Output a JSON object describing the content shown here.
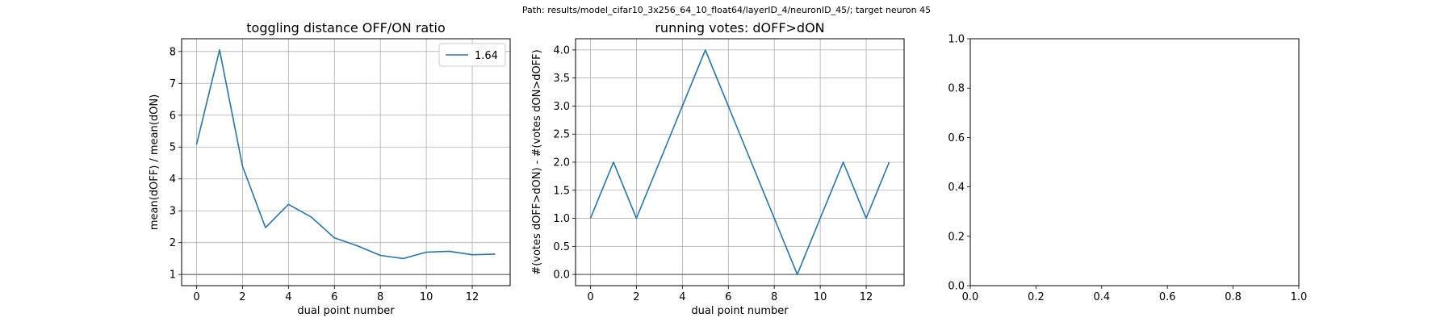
{
  "figure": {
    "suptitle": "Path: results/model_cifar10_3x256_64_10_float64/layerID_4/neuronID_45/; target neuron 45"
  },
  "chart_data": [
    {
      "type": "line",
      "title": "toggling distance OFF/ON ratio",
      "xlabel": "dual point number",
      "ylabel": "mean(dOFF) / mean(dON)",
      "xlim": [
        -0.65,
        13.65
      ],
      "ylim": [
        0.65,
        8.4
      ],
      "xticks": [
        0,
        2,
        4,
        6,
        8,
        10,
        12
      ],
      "yticks": [
        1,
        2,
        3,
        4,
        5,
        6,
        7,
        8
      ],
      "grid": true,
      "legend": {
        "position": "upper right",
        "entries": [
          "1.64"
        ]
      },
      "hline": 1,
      "series": [
        {
          "name": "1.64",
          "color": "#1f77b4",
          "x": [
            0,
            1,
            2,
            3,
            4,
            5,
            6,
            7,
            8,
            9,
            10,
            11,
            12,
            13
          ],
          "y": [
            5.08,
            8.05,
            4.4,
            2.47,
            3.2,
            2.8,
            2.15,
            1.9,
            1.6,
            1.5,
            1.7,
            1.73,
            1.62,
            1.64
          ]
        }
      ]
    },
    {
      "type": "line",
      "title": "running votes: dOFF>dON",
      "xlabel": "dual point number",
      "ylabel": "#(votes dOFF>dON) - #(votes dON>dOFF)",
      "xlim": [
        -0.65,
        13.65
      ],
      "ylim": [
        -0.2,
        4.2
      ],
      "xticks": [
        0,
        2,
        4,
        6,
        8,
        10,
        12
      ],
      "yticks": [
        0.0,
        0.5,
        1.0,
        1.5,
        2.0,
        2.5,
        3.0,
        3.5,
        4.0
      ],
      "grid": true,
      "hline": 0,
      "series": [
        {
          "color": "#1f77b4",
          "x": [
            0,
            1,
            2,
            3,
            4,
            5,
            6,
            7,
            8,
            9,
            10,
            11,
            12,
            13
          ],
          "y": [
            1,
            2,
            1,
            2,
            3,
            4,
            3,
            2,
            1,
            0,
            1,
            2,
            1,
            2
          ]
        }
      ]
    },
    {
      "type": "line",
      "title": "",
      "xlabel": "",
      "ylabel": "",
      "xlim": [
        0,
        1
      ],
      "ylim": [
        0,
        1
      ],
      "xticks": [
        0.0,
        0.2,
        0.4,
        0.6,
        0.8,
        1.0
      ],
      "yticks": [
        0.0,
        0.2,
        0.4,
        0.6,
        0.8,
        1.0
      ],
      "grid": false,
      "series": []
    }
  ]
}
